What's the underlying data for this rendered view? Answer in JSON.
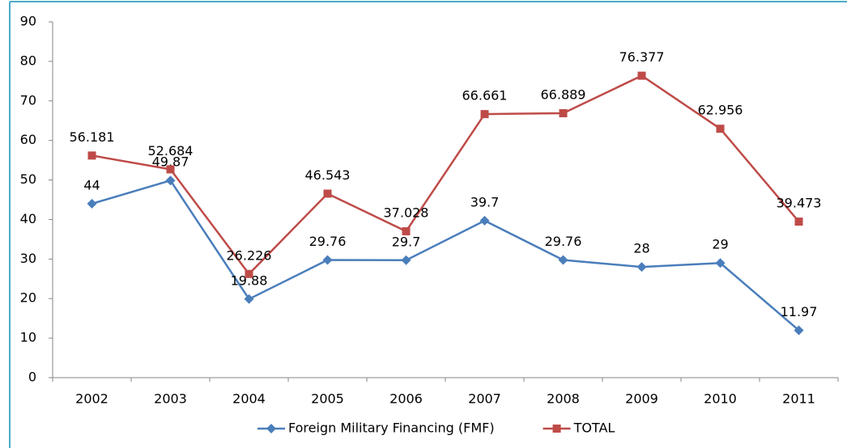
{
  "chart_data": {
    "type": "line",
    "categories": [
      "2002",
      "2003",
      "2004",
      "2005",
      "2006",
      "2007",
      "2008",
      "2009",
      "2010",
      "2011"
    ],
    "series": [
      {
        "name": "Foreign Military Financing (FMF)",
        "color": "#4a7ebb",
        "marker": "diamond",
        "values": [
          44,
          49.87,
          19.88,
          29.76,
          29.7,
          39.7,
          29.76,
          28,
          29,
          11.97
        ]
      },
      {
        "name": "TOTAL",
        "color": "#be4b48",
        "marker": "square",
        "values": [
          56.181,
          52.684,
          26.226,
          46.543,
          37.028,
          66.661,
          66.889,
          76.377,
          62.956,
          39.473
        ]
      }
    ],
    "ylim": [
      0,
      90
    ],
    "yticks": [
      0,
      10,
      20,
      30,
      40,
      50,
      60,
      70,
      80,
      90
    ],
    "grid": false,
    "legend": "bottom"
  }
}
